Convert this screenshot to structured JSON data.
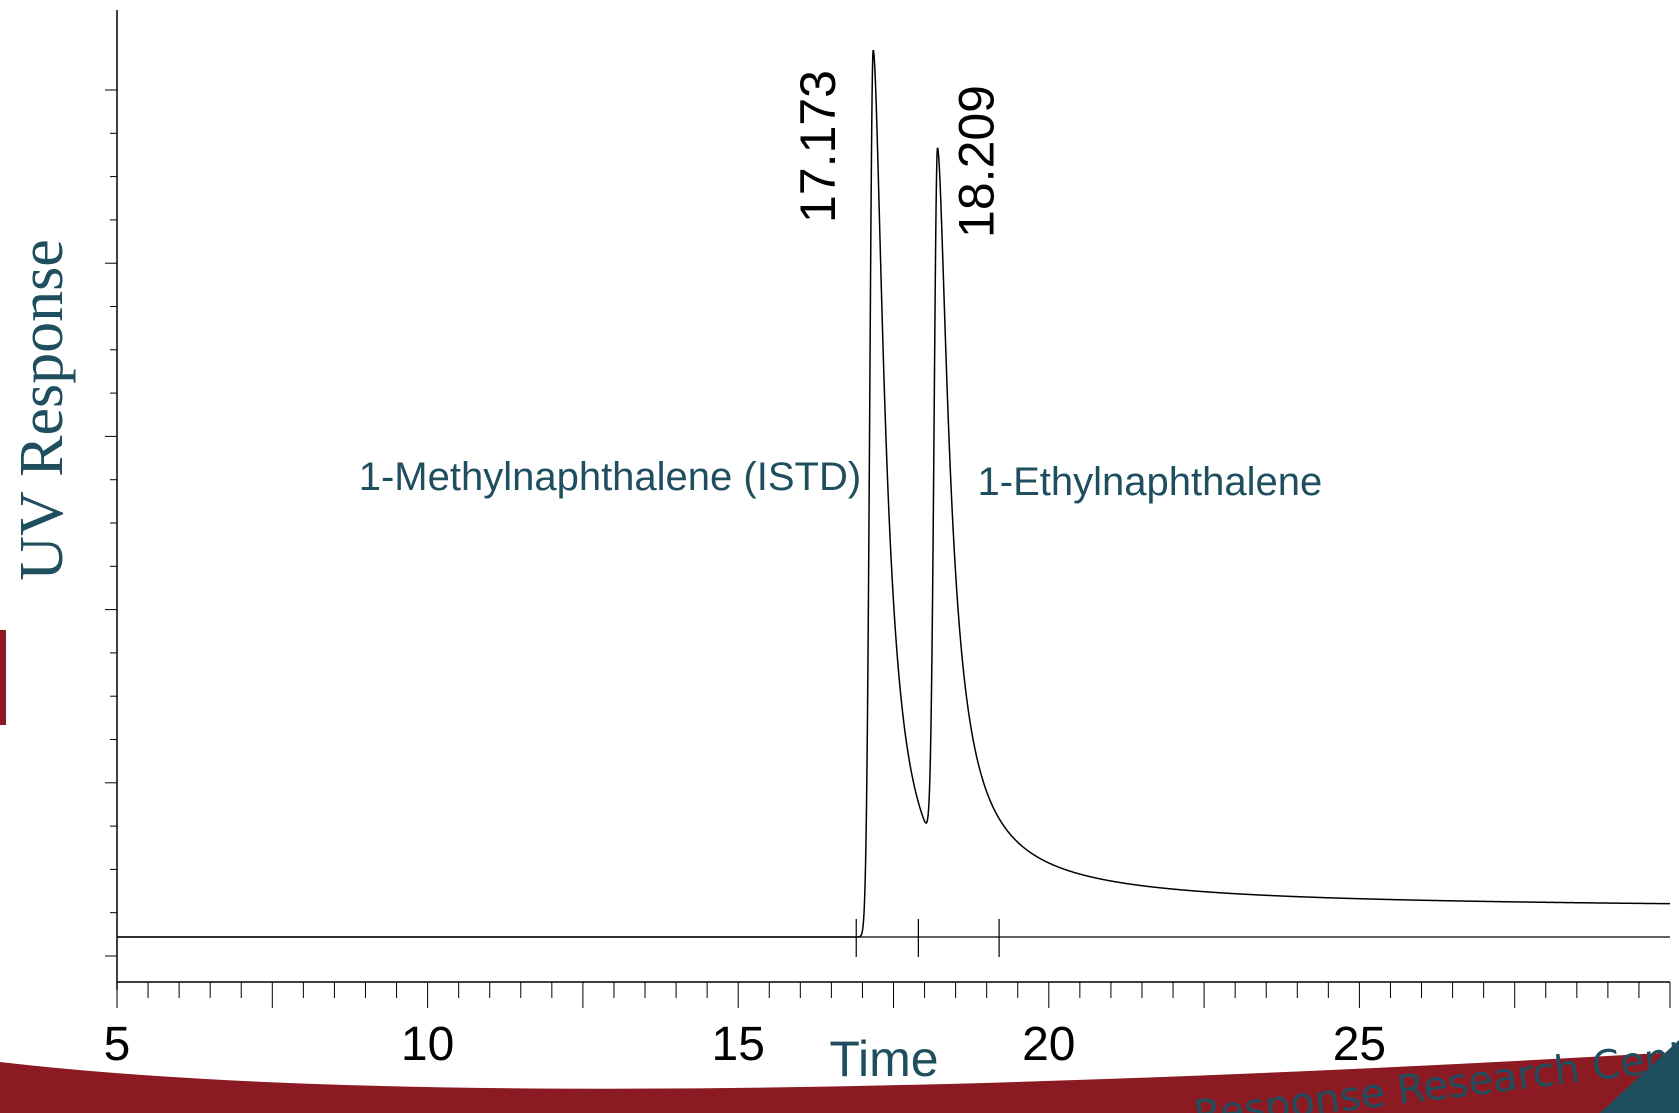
{
  "chart_data": {
    "type": "line",
    "title": "",
    "xlabel": "Time",
    "ylabel": "UV Response",
    "xlim": [
      5,
      30
    ],
    "xticks": [
      5,
      10,
      15,
      20,
      25
    ],
    "x_tick_labels": [
      "5",
      "10",
      "15",
      "20",
      "25"
    ],
    "x_minor_step": 0.5,
    "ylim": [
      0,
      100
    ],
    "grid": false,
    "baseline": 0,
    "series": [
      {
        "peaks": [
          {
            "rt": 17.173,
            "label": "17.173",
            "compound": "1-Methylnaphthalene (ISTD)",
            "height": 100
          },
          {
            "rt": 18.209,
            "label": "18.209",
            "compound": "1-Ethylnaphthalene",
            "height": 79
          }
        ]
      }
    ],
    "integration_markers": [
      16.9,
      17.9,
      19.2
    ]
  },
  "footer": {
    "text": "Response Research Center",
    "colors": {
      "maroon": "#8b1a22",
      "teal": "#1f4e5f"
    }
  }
}
